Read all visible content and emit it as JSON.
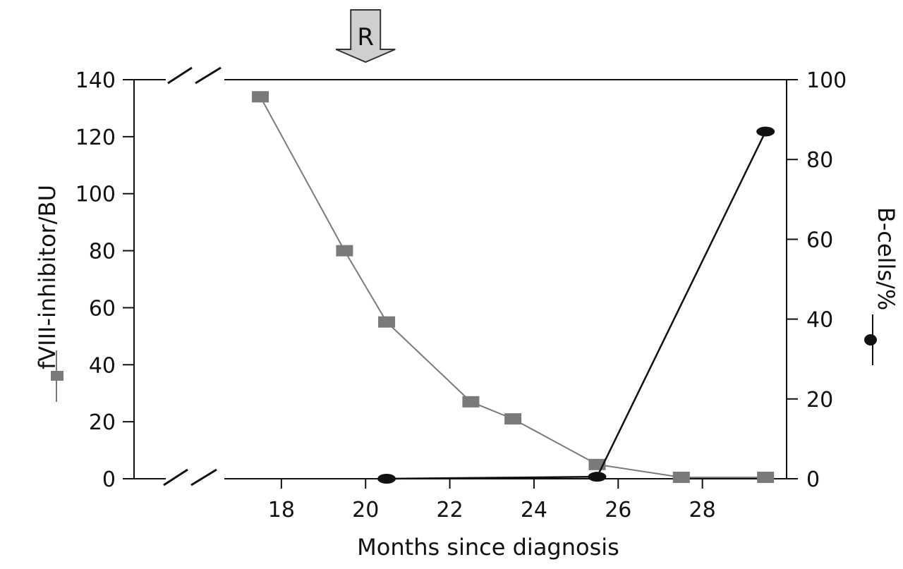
{
  "chart_data": {
    "type": "line",
    "xlabel": "Months since diagnosis",
    "ylabel_left": "fVIII-inhibitor/BU",
    "ylabel_right": "B-cells/%",
    "x_ticks": [
      18,
      20,
      22,
      24,
      26,
      28
    ],
    "y_left_ticks": [
      0,
      20,
      40,
      60,
      80,
      100,
      120,
      140
    ],
    "y_right_ticks": [
      0,
      20,
      40,
      60,
      80,
      100
    ],
    "xlim": [
      14.5,
      30.0
    ],
    "ylim_left": [
      0,
      140
    ],
    "ylim_right": [
      0,
      100
    ],
    "axis_break": true,
    "annotation": {
      "label": "R",
      "x": 20.0,
      "shape": "down-arrow"
    },
    "series": [
      {
        "axis": "left",
        "marker": "square",
        "color": "#7a7a7a",
        "x": [
          17.5,
          19.5,
          20.5,
          22.5,
          23.5,
          25.5,
          27.5,
          29.5
        ],
        "y": [
          134,
          80,
          55,
          27,
          21,
          5,
          0.5,
          0.5
        ]
      },
      {
        "axis": "right",
        "marker": "ellipse",
        "color": "#111111",
        "x": [
          20.5,
          25.5,
          29.5
        ],
        "y": [
          0,
          0.5,
          87
        ]
      }
    ]
  }
}
